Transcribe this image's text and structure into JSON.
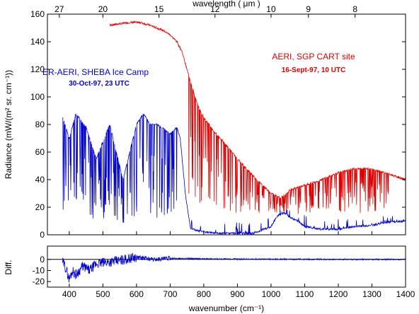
{
  "chart_data": [
    {
      "type": "line",
      "panel": "main",
      "xlabel": "wavenumber (cm⁻¹)",
      "ylabel": "Radiance (mW/(m² sr. cm⁻¹))",
      "top_axis_label": "wavelength ( μm )",
      "xlim": [
        335,
        1400
      ],
      "ylim": [
        0,
        160
      ],
      "yticks": [
        "0",
        "20",
        "40",
        "60",
        "80",
        "100",
        "120",
        "140",
        "160"
      ],
      "top_ticks": [
        {
          "label": "27",
          "wavenumber": 370.4
        },
        {
          "label": "20",
          "wavenumber": 500
        },
        {
          "label": "15",
          "wavenumber": 666.7
        },
        {
          "label": "12",
          "wavenumber": 833.3
        },
        {
          "label": "10",
          "wavenumber": 1000
        },
        {
          "label": "9",
          "wavenumber": 1111.1
        },
        {
          "label": "8",
          "wavenumber": 1250
        }
      ],
      "grid": false,
      "series": [
        {
          "name": "AERI, SGP CART site",
          "subtitle": "16-Sept-97, 10 UTC",
          "color": "#dd0000",
          "x": [
            520,
            550,
            580,
            610,
            640,
            660,
            680,
            700,
            720,
            735,
            750,
            780,
            800,
            830,
            860,
            900,
            950,
            1000,
            1030,
            1060,
            1100,
            1150,
            1200,
            1250,
            1300,
            1350,
            1400
          ],
          "y": [
            152,
            153,
            154,
            154,
            152,
            150,
            148,
            145,
            140,
            133,
            120,
            95,
            85,
            75,
            67,
            55,
            42,
            30,
            27,
            33,
            36,
            40,
            45,
            48,
            48,
            44,
            40
          ]
        },
        {
          "name": "ER-AERI, SHEBA Ice Camp",
          "subtitle": "30-Oct-97, 23 UTC",
          "color": "#0000cc",
          "x": [
            380,
            400,
            420,
            450,
            480,
            520,
            560,
            600,
            620,
            640,
            660,
            680,
            700,
            720,
            730,
            745,
            760,
            780,
            800,
            850,
            900,
            950,
            1000,
            1020,
            1040,
            1060,
            1080,
            1100,
            1150,
            1200,
            1250,
            1300,
            1350,
            1400
          ],
          "y": [
            85,
            70,
            88,
            78,
            55,
            80,
            40,
            80,
            88,
            80,
            80,
            77,
            73,
            78,
            70,
            30,
            5,
            3,
            2,
            1,
            1,
            1,
            6,
            14,
            16,
            12,
            10,
            6,
            4,
            4,
            6,
            7,
            9,
            10
          ]
        }
      ]
    },
    {
      "type": "line",
      "panel": "difference",
      "ylabel": "Diff.",
      "xlabel": "wavenumber (cm⁻¹)",
      "xlim": [
        335,
        1400
      ],
      "ylim": [
        -25,
        12
      ],
      "yticks": [
        "0",
        "-10",
        "-20"
      ],
      "xticks": [
        "400",
        "500",
        "600",
        "700",
        "800",
        "900",
        "1000",
        "1100",
        "1200",
        "1300",
        "1400"
      ],
      "series": [
        {
          "color": "#0000cc",
          "x": [
            380,
            390,
            400,
            410,
            420,
            440,
            460,
            480,
            500,
            550,
            600,
            650,
            700,
            800,
            900,
            1000,
            1100,
            1200,
            1300,
            1400
          ],
          "y": [
            -2,
            -8,
            -18,
            -10,
            -14,
            -6,
            -10,
            -4,
            -3,
            -1,
            2,
            0,
            1,
            0.5,
            0.3,
            0.2,
            0.1,
            0,
            0,
            0
          ]
        }
      ]
    }
  ],
  "annotations": {
    "red_title": "AERI, SGP CART site",
    "red_date": "16-Sept-97, 10 UTC",
    "blue_title": "ER-AERI, SHEBA Ice Camp",
    "blue_date": "30-Oct-97, 23 UTC"
  },
  "colors": {
    "red": "#dd0000",
    "blue": "#0000cc",
    "zero_line": "#000000"
  }
}
